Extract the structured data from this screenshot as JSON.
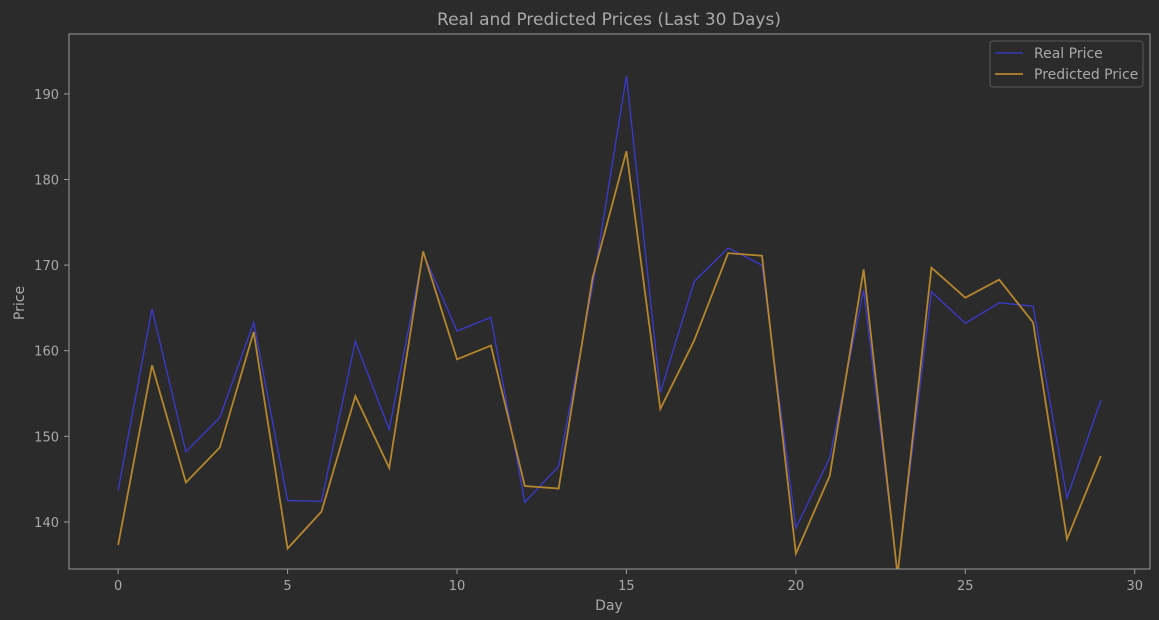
{
  "chart_data": {
    "type": "line",
    "title": "Real and Predicted Prices (Last 30 Days)",
    "xlabel": "Day",
    "ylabel": "Price",
    "xlim": [
      -1.45,
      30.45
    ],
    "ylim": [
      134.5,
      197.0
    ],
    "xticks": [
      0,
      5,
      10,
      15,
      20,
      25,
      30
    ],
    "yticks": [
      140,
      150,
      160,
      170,
      180,
      190
    ],
    "x": [
      0,
      1,
      2,
      3,
      4,
      5,
      6,
      7,
      8,
      9,
      10,
      11,
      12,
      13,
      14,
      15,
      16,
      17,
      18,
      19,
      20,
      21,
      22,
      23,
      24,
      25,
      26,
      27,
      28,
      29
    ],
    "series": [
      {
        "name": "Real Price",
        "color": "#3a3ad0",
        "values": [
          143.7,
          164.9,
          148.2,
          152.2,
          163.3,
          142.5,
          142.4,
          161.1,
          150.8,
          171.4,
          162.3,
          163.9,
          142.3,
          146.5,
          167.5,
          192.1,
          155.1,
          168.1,
          172.0,
          170.0,
          139.3,
          147.5,
          167.1,
          134.0,
          166.9,
          163.2,
          165.6,
          165.2,
          142.8,
          154.2
        ]
      },
      {
        "name": "Predicted Price",
        "color": "#b5862d",
        "values": [
          137.3,
          158.3,
          144.6,
          148.7,
          162.2,
          136.9,
          141.2,
          154.7,
          146.3,
          171.6,
          159.0,
          160.6,
          144.2,
          143.9,
          168.5,
          183.3,
          153.2,
          161.2,
          171.4,
          171.1,
          136.3,
          145.4,
          169.5,
          133.8,
          169.7,
          166.2,
          168.3,
          163.3,
          138.0,
          147.7
        ]
      }
    ],
    "legend_position": "top-right",
    "grid": false
  },
  "colors": {
    "background": "#2b2b2b",
    "axes_background": "#2b2b2b",
    "spine": "#9a9a9a",
    "text": "#a9a9a9"
  }
}
